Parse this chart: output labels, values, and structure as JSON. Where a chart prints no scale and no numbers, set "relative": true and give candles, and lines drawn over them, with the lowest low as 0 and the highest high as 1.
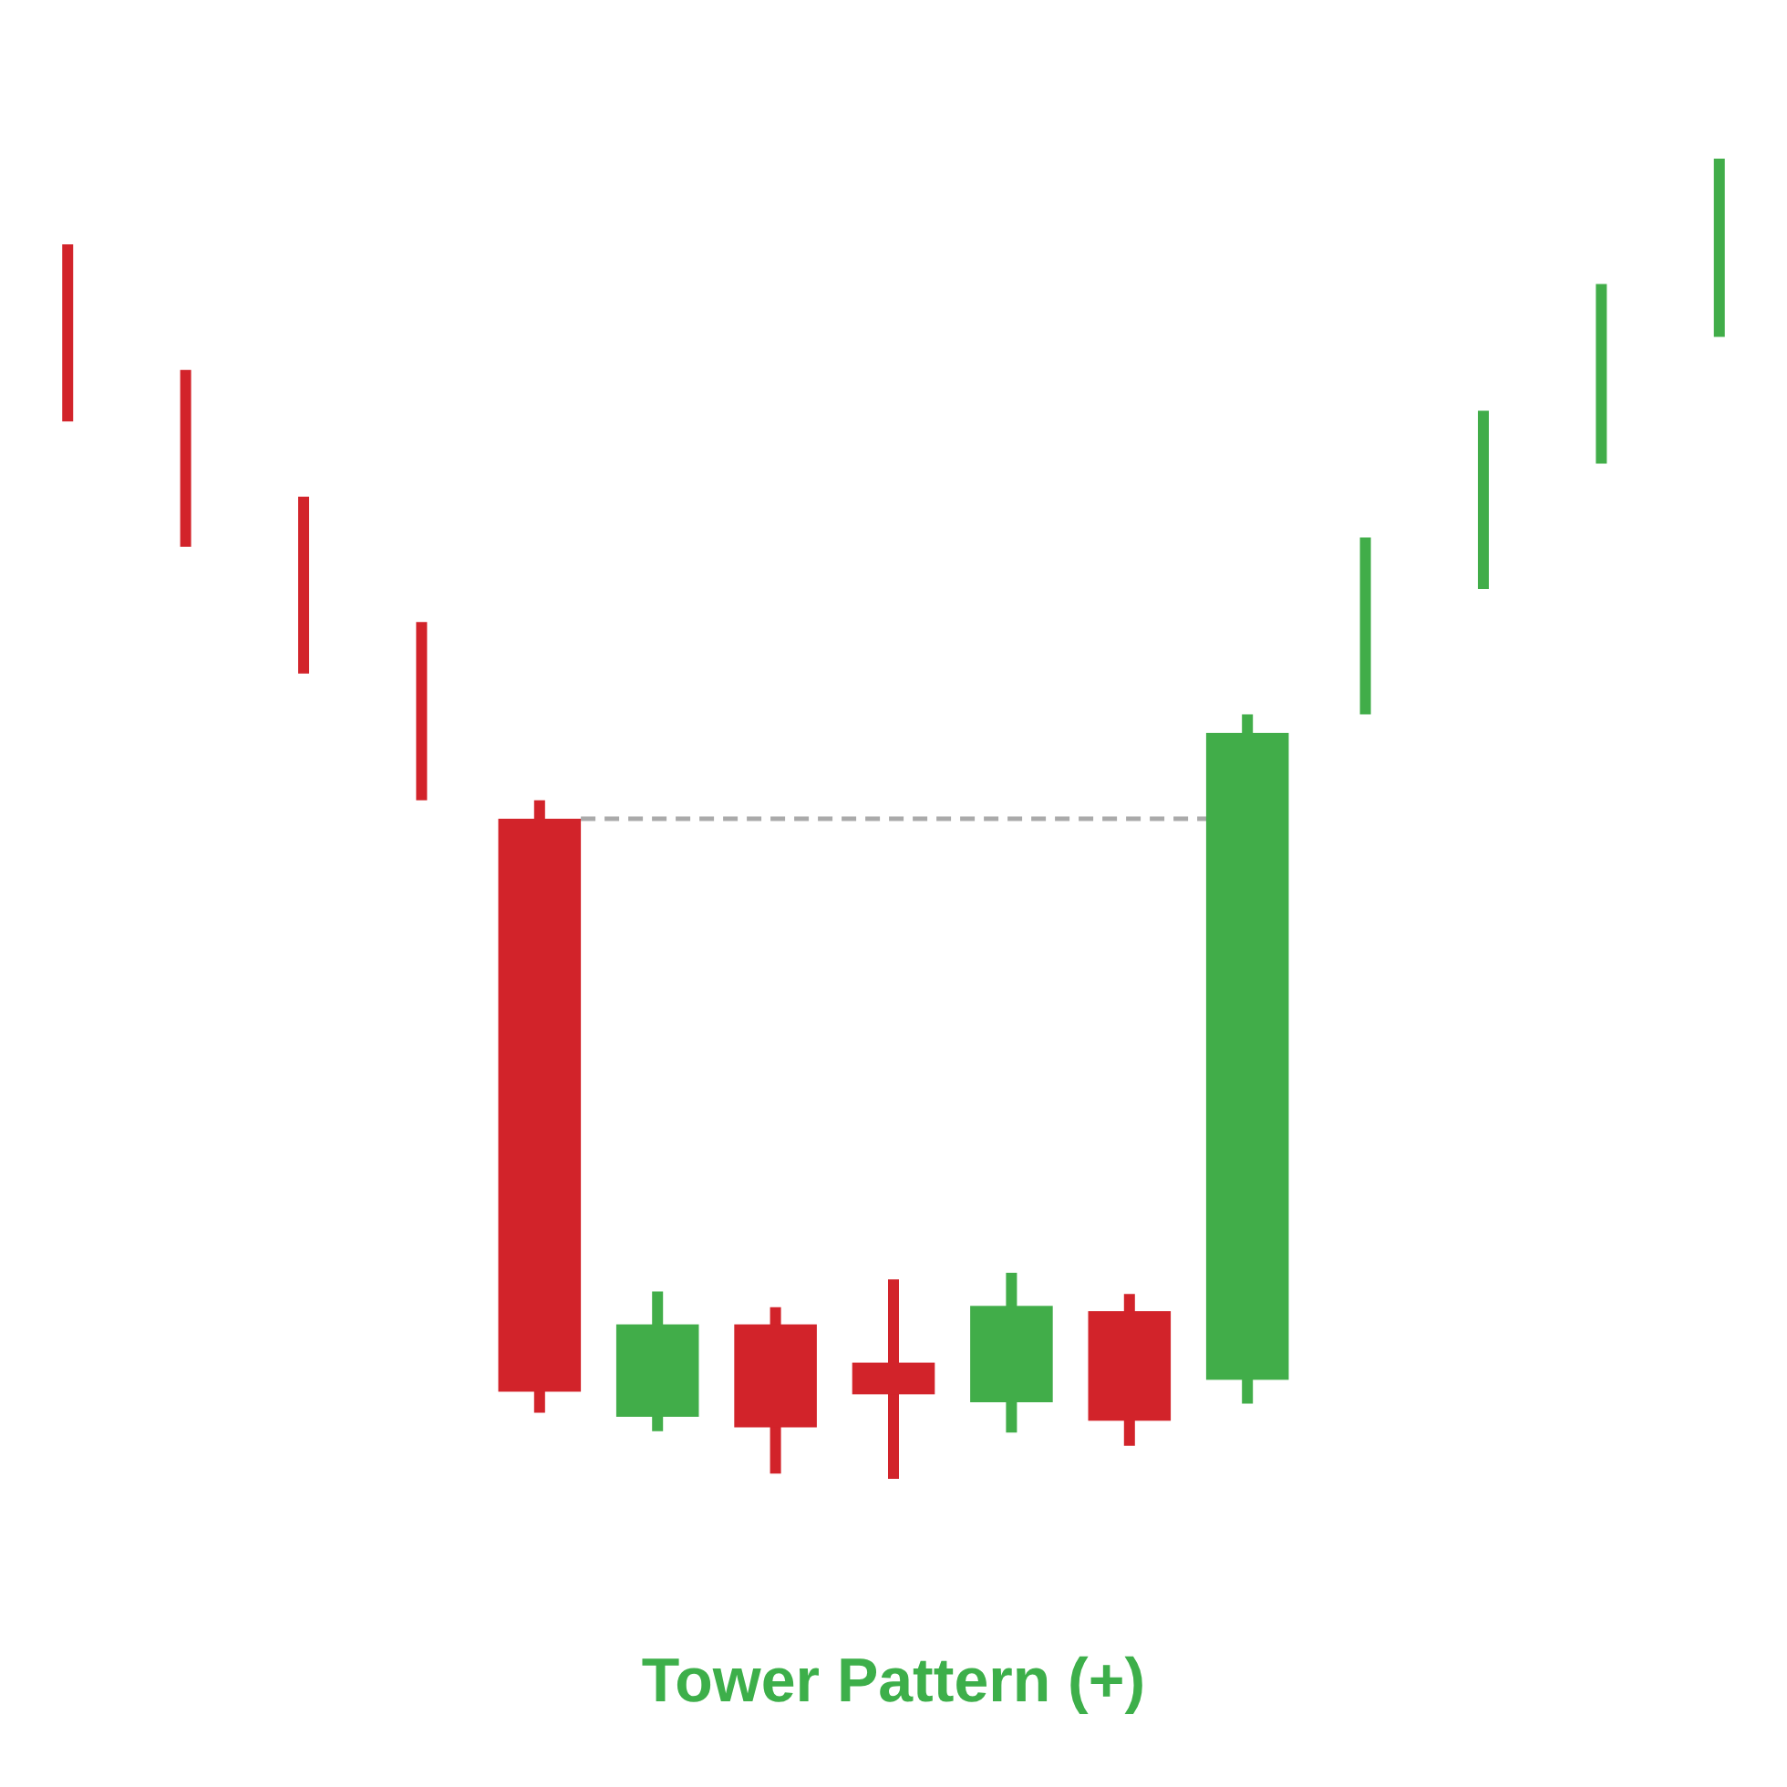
{
  "chart_data": {
    "type": "candlestick",
    "title": "Tower Pattern (+)",
    "relative": true,
    "categories": [
      null,
      null,
      null,
      null,
      null,
      null,
      null,
      null,
      null,
      null,
      null,
      null,
      null,
      null,
      null
    ],
    "ohlc": [
      [
        0.935,
        0.935,
        0.801,
        0.801
      ],
      [
        0.84,
        0.84,
        0.706,
        0.706
      ],
      [
        0.744,
        0.744,
        0.61,
        0.61
      ],
      [
        0.649,
        0.649,
        0.514,
        0.514
      ],
      [
        0.5,
        0.514,
        0.05,
        0.066
      ],
      [
        0.047,
        0.142,
        0.036,
        0.117
      ],
      [
        0.117,
        0.13,
        0.004,
        0.039
      ],
      [
        0.088,
        0.151,
        0,
        0.064
      ],
      [
        0.058,
        0.156,
        0.035,
        0.131
      ],
      [
        0.127,
        0.14,
        0.025,
        0.044
      ],
      [
        0.075,
        0.579,
        0.057,
        0.565
      ],
      [
        0.579,
        0.713,
        0.579,
        0.713
      ],
      [
        0.674,
        0.809,
        0.674,
        0.809
      ],
      [
        0.769,
        0.905,
        0.769,
        0.905
      ],
      [
        0.865,
        1,
        0.865,
        1
      ]
    ],
    "colors": [
      "#d2232a",
      "#d2232a",
      "#d2232a",
      "#d2232a",
      "#d2232a",
      "#41ad49",
      "#d2232a",
      "#d2232a",
      "#41ad49",
      "#d2232a",
      "#41ad49",
      "#41ad49",
      "#41ad49",
      "#41ad49",
      "#41ad49"
    ],
    "ref_lines": [
      {
        "axis": "y",
        "value": 0.5,
        "color": "#aaaaaa",
        "line_style": "dashed"
      }
    ]
  }
}
